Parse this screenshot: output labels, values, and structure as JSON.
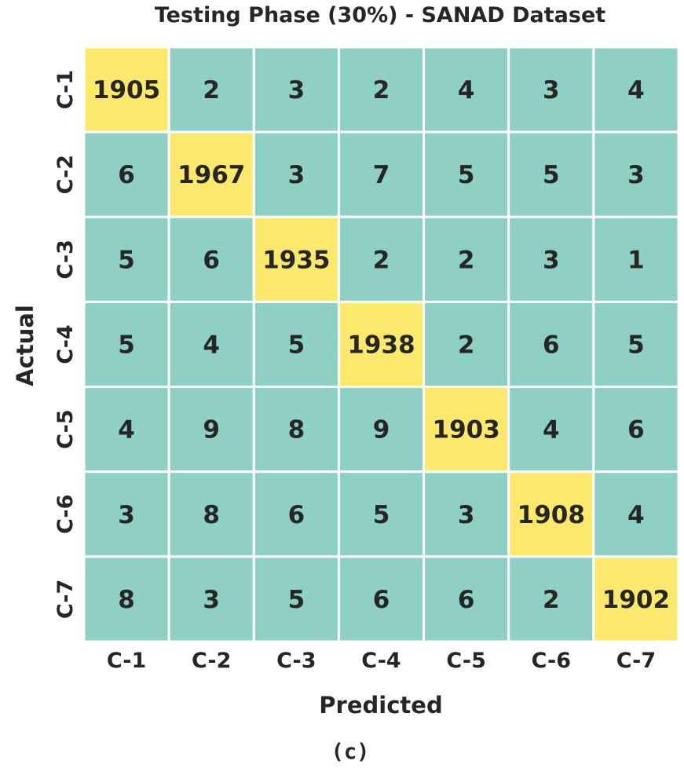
{
  "chart_data": {
    "type": "heatmap",
    "title": "Testing Phase (30%) - SANAD Dataset",
    "xlabel": "Predicted",
    "ylabel": "Actual",
    "x_categories": [
      "C-1",
      "C-2",
      "C-3",
      "C-4",
      "C-5",
      "C-6",
      "C-7"
    ],
    "y_categories": [
      "C-1",
      "C-2",
      "C-3",
      "C-4",
      "C-5",
      "C-6",
      "C-7"
    ],
    "values": [
      [
        1905,
        2,
        3,
        2,
        4,
        3,
        4
      ],
      [
        6,
        1967,
        3,
        7,
        5,
        5,
        3
      ],
      [
        5,
        6,
        1935,
        2,
        2,
        3,
        1
      ],
      [
        5,
        4,
        5,
        1938,
        2,
        6,
        5
      ],
      [
        4,
        9,
        8,
        9,
        1903,
        4,
        6
      ],
      [
        3,
        8,
        6,
        5,
        3,
        1908,
        4
      ],
      [
        8,
        3,
        5,
        6,
        6,
        2,
        1902
      ]
    ],
    "colors": {
      "diagonal": "#fde86e",
      "off_diagonal": "#8ed0c3",
      "grid": "#ffffff",
      "text": "#262626"
    },
    "caption": "(c)"
  }
}
